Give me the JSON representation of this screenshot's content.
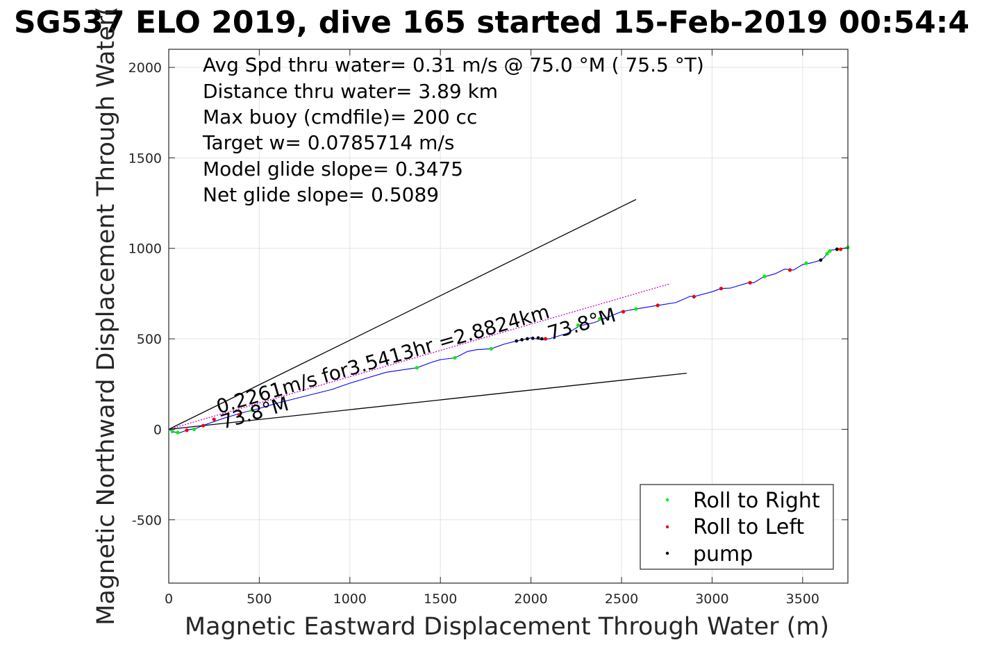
{
  "chart_data": {
    "type": "line",
    "title": "SG537 ELO 2019, dive 165 started 15-Feb-2019 00:54:4",
    "xlabel": "Magnetic Eastward Displacement Through Water (m)",
    "ylabel": "Magnetic Northward Displacement Through Water(",
    "xlim": [
      0,
      3750
    ],
    "ylim": [
      -850,
      2100
    ],
    "xticks": [
      0,
      500,
      1000,
      1500,
      2000,
      2500,
      3000,
      3500
    ],
    "xtick_labels": [
      "0",
      "500",
      "1000",
      "1500",
      "2000",
      "2500",
      "3000",
      "3500"
    ],
    "yticks": [
      -500,
      0,
      500,
      1000,
      1500,
      2000
    ],
    "ytick_labels": [
      "-500",
      "0",
      "500",
      "1000",
      "1500",
      "2000"
    ],
    "grid": true,
    "info_lines": [
      "Avg Spd thru water=  0.31 m/s @  75.0 °M ( 75.5 °T)",
      "Distance thru water=  3.89 km",
      "Max buoy (cmdfile)= 200 cc",
      "Target w= 0.0785714 m/s",
      "Model glide slope= 0.3475",
      "Net glide slope= 0.5089"
    ],
    "annotations": [
      {
        "text": "0.2261m/s for3.5413hr =2.8824km",
        "x": 250,
        "y": 30,
        "angle_deg": 73.8
      },
      {
        "text": "73.8°M",
        "x": 280,
        "y": 20,
        "angle_deg": 73.8
      },
      {
        "text": "73.8°M",
        "x": 2100,
        "y": 530,
        "angle_deg": 73.8
      }
    ],
    "reference_lines": [
      {
        "name": "upper-bound",
        "x": [
          0,
          2580
        ],
        "y": [
          0,
          1270
        ],
        "color": "#000000"
      },
      {
        "name": "lower-bound",
        "x": [
          0,
          2860
        ],
        "y": [
          0,
          310
        ],
        "color": "#000000"
      },
      {
        "name": "current-vector",
        "x": [
          0,
          2770
        ],
        "y": [
          0,
          805
        ],
        "color": "#cc00cc",
        "dashed": true
      }
    ],
    "series": [
      {
        "name": "track",
        "color": "#0000ff",
        "x": [
          0,
          30,
          60,
          100,
          150,
          200,
          300,
          400,
          500,
          600,
          700,
          800,
          900,
          1000,
          1100,
          1200,
          1300,
          1370,
          1450,
          1500,
          1580,
          1650,
          1700,
          1780,
          1850,
          1920,
          2000,
          2060,
          2100,
          2200,
          2270,
          2350,
          2400,
          2450,
          2500,
          2580,
          2700,
          2800,
          2880,
          2900,
          3000,
          3050,
          3100,
          3200,
          3230,
          3280,
          3350,
          3400,
          3450,
          3500,
          3550,
          3600,
          3620,
          3640,
          3650,
          3700,
          3750
        ],
        "y": [
          0,
          -15,
          -20,
          -5,
          5,
          25,
          60,
          90,
          115,
          145,
          170,
          195,
          220,
          255,
          285,
          315,
          330,
          340,
          370,
          385,
          395,
          430,
          440,
          445,
          470,
          488,
          505,
          495,
          500,
          530,
          572,
          590,
          610,
          630,
          650,
          665,
          685,
          700,
          735,
          733,
          760,
          778,
          780,
          810,
          810,
          840,
          860,
          885,
          880,
          910,
          920,
          935,
          950,
          980,
          990,
          995,
          1005
        ]
      }
    ],
    "markers": {
      "roll_right": {
        "color": "#00ee00",
        "x": [
          20,
          50,
          140,
          460,
          1370,
          1580,
          1780,
          2260,
          2380,
          2580,
          3290,
          3520,
          3635,
          3650,
          3750
        ],
        "y": [
          -12,
          -18,
          0,
          105,
          340,
          395,
          445,
          575,
          610,
          665,
          845,
          918,
          970,
          985,
          1005
        ]
      },
      "roll_left": {
        "color": "#ee0000",
        "x": [
          100,
          190,
          250,
          390,
          2080,
          2510,
          2700,
          2900,
          3050,
          3210,
          3430,
          3690,
          3710
        ],
        "y": [
          -5,
          20,
          55,
          80,
          500,
          650,
          685,
          733,
          778,
          810,
          880,
          995,
          995
        ]
      },
      "pump": {
        "color": "#000000",
        "x": [
          1920,
          1950,
          1980,
          2010,
          2040,
          2060,
          3600,
          3690
        ],
        "y": [
          488,
          495,
          500,
          503,
          505,
          500,
          935,
          995
        ]
      }
    },
    "legend": {
      "position": "bottom-right",
      "entries": [
        {
          "label": "Roll to Right",
          "color": "#00ee00"
        },
        {
          "label": "Roll to Left",
          "color": "#ee0000"
        },
        {
          "label": "pump",
          "color": "#000000"
        }
      ]
    }
  }
}
